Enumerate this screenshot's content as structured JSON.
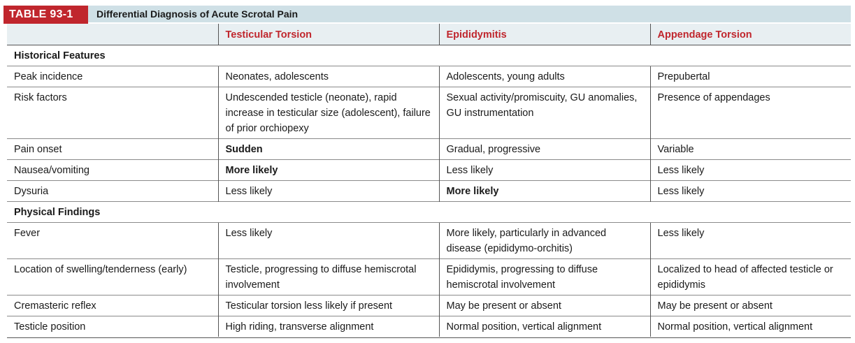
{
  "table": {
    "tag": "TABLE 93-1",
    "caption": "Differential Diagnosis of Acute Scrotal Pain",
    "columns": [
      "",
      "Testicular Torsion",
      "Epididymitis",
      "Appendage Torsion"
    ],
    "sections": [
      {
        "title": "Historical Features",
        "rows": [
          {
            "label": "Peak incidence",
            "cells": [
              "Neonates, adolescents",
              "Adolescents, young adults",
              "Prepubertal"
            ],
            "bold": [
              false,
              false,
              false
            ]
          },
          {
            "label": "Risk factors",
            "cells": [
              "Undescended testicle (neonate), rapid increase in testicular size (adolescent), failure of prior orchiopexy",
              "Sexual activity/promiscuity, GU anomalies, GU instrumentation",
              "Presence of appendages"
            ],
            "bold": [
              false,
              false,
              false
            ]
          },
          {
            "label": "Pain onset",
            "cells": [
              "Sudden",
              "Gradual, progressive",
              "Variable"
            ],
            "bold": [
              true,
              false,
              false
            ]
          },
          {
            "label": "Nausea/vomiting",
            "cells": [
              "More likely",
              "Less likely",
              "Less likely"
            ],
            "bold": [
              true,
              false,
              false
            ]
          },
          {
            "label": "Dysuria",
            "cells": [
              "Less likely",
              "More likely",
              "Less likely"
            ],
            "bold": [
              false,
              true,
              false
            ]
          }
        ]
      },
      {
        "title": "Physical Findings",
        "rows": [
          {
            "label": "Fever",
            "cells": [
              "Less likely",
              "More likely, particularly in advanced disease (epididymo-orchitis)",
              "Less likely"
            ],
            "bold": [
              false,
              false,
              false
            ]
          },
          {
            "label": "Location of swelling/tenderness (early)",
            "cells": [
              "Testicle, progressing to diffuse hemiscrotal involvement",
              "Epididymis, progressing to diffuse hemiscrotal involvement",
              "Localized to head of affected testicle or epididymis"
            ],
            "bold": [
              false,
              false,
              false
            ]
          },
          {
            "label": "Cremasteric reflex",
            "cells": [
              "Testicular torsion less likely if present",
              "May be present or absent",
              "May be present or absent"
            ],
            "bold": [
              false,
              false,
              false
            ]
          },
          {
            "label": "Testicle position",
            "cells": [
              "High riding, transverse alignment",
              "Normal position, vertical alignment",
              "Normal position, vertical alignment"
            ],
            "bold": [
              false,
              false,
              false
            ]
          }
        ]
      }
    ]
  },
  "colors": {
    "tag_bg": "#c0262d",
    "header_text": "#c0262d",
    "title_bar": "#cfe0e6",
    "header_bg": "#e8eff2"
  }
}
